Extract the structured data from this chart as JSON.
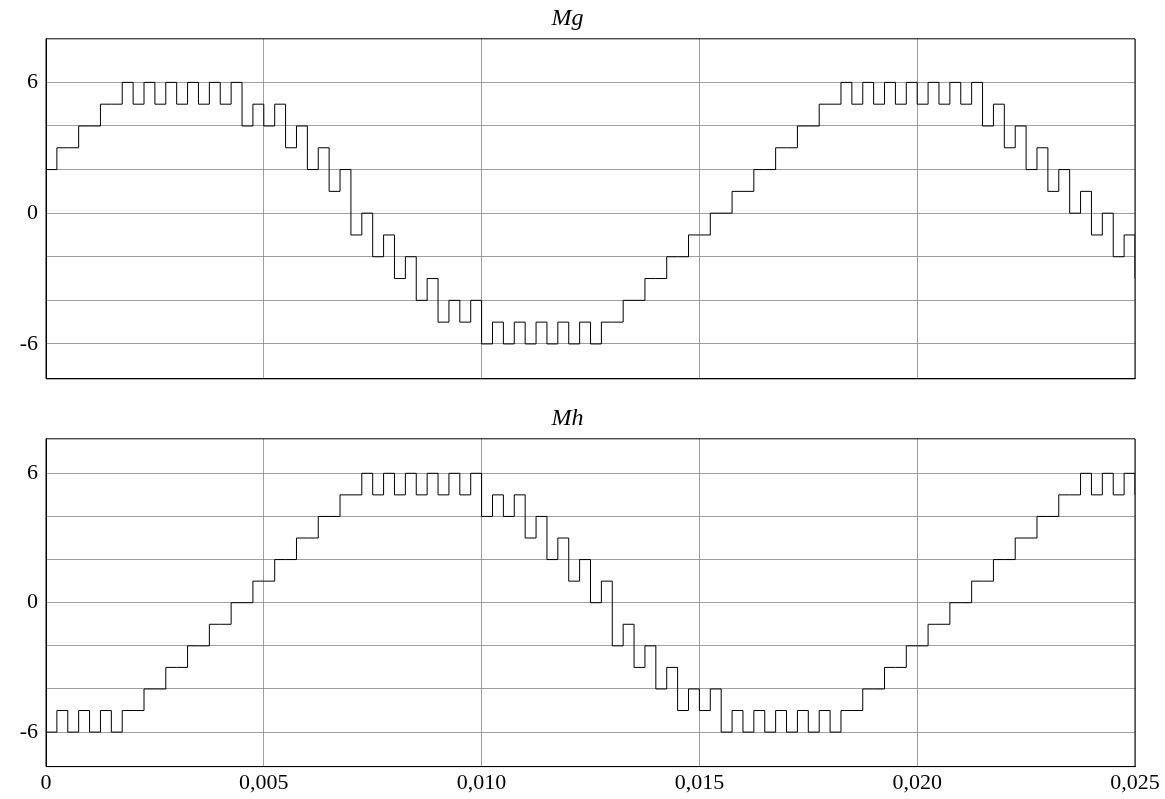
{
  "chart_data": [
    {
      "type": "step",
      "title": "Mg",
      "tick_labels": "y",
      "grid": true,
      "x": [
        0,
        0.00025,
        0.0005,
        0.00075,
        0.001,
        0.00125,
        0.0015,
        0.00175,
        0.002,
        0.00225,
        0.0025,
        0.00275,
        0.003,
        0.00325,
        0.0035,
        0.00375,
        0.004,
        0.00425,
        0.0045,
        0.00475,
        0.005,
        0.00525,
        0.0055,
        0.00575,
        0.006,
        0.00625,
        0.0065,
        0.00675,
        0.007,
        0.00725,
        0.0075,
        0.00775,
        0.008,
        0.00825,
        0.0085,
        0.00875,
        0.009,
        0.00925,
        0.0095,
        0.00975,
        0.01,
        0.01025,
        0.0105,
        0.01075,
        0.011,
        0.01125,
        0.0115,
        0.01175,
        0.012,
        0.01225,
        0.0125,
        0.01275,
        0.013,
        0.01325,
        0.0135,
        0.01375,
        0.014,
        0.01425,
        0.0145,
        0.01475,
        0.015,
        0.01525,
        0.0155,
        0.01575,
        0.016,
        0.01625,
        0.0165,
        0.01675,
        0.017,
        0.01725,
        0.0175,
        0.01775,
        0.018,
        0.01825,
        0.0185,
        0.01875,
        0.019,
        0.01925,
        0.0195,
        0.01975,
        0.02,
        0.02025,
        0.0205,
        0.02075,
        0.021,
        0.02125,
        0.0215,
        0.02175,
        0.022,
        0.02225,
        0.0225,
        0.02275,
        0.023,
        0.02325,
        0.0235,
        0.02375,
        0.024,
        0.02425,
        0.0245,
        0.02475,
        0.025
      ],
      "series": [
        {
          "color": "#000000",
          "values": [
            2,
            3,
            3,
            4,
            4,
            5,
            5,
            6,
            5,
            6,
            5,
            6,
            5,
            6,
            5,
            6,
            5,
            6,
            4,
            5,
            4,
            5,
            3,
            4,
            2,
            3,
            1,
            2,
            -1,
            0,
            -2,
            -1,
            -3,
            -2,
            -4,
            -3,
            -5,
            -4,
            -5,
            -4,
            -6,
            -5,
            -6,
            -5,
            -6,
            -5,
            -6,
            -5,
            -6,
            -5,
            -6,
            -5,
            -5,
            -4,
            -4,
            -3,
            -3,
            -2,
            -2,
            -1,
            -1,
            0,
            0,
            1,
            1,
            2,
            2,
            3,
            3,
            4,
            4,
            5,
            5,
            6,
            5,
            6,
            5,
            6,
            5,
            6,
            5,
            6,
            5,
            6,
            5,
            6,
            4,
            5,
            3,
            4,
            2,
            3,
            1,
            2,
            0,
            1,
            -1,
            0,
            -2,
            -1,
            -3
          ]
        }
      ],
      "xlim": [
        0,
        0.025
      ],
      "xticks": [
        0,
        0.005,
        0.01,
        0.015,
        0.02,
        0.025
      ],
      "ylim": [
        -7.6,
        8
      ],
      "yticks": [
        -6,
        {
          "value": -4,
          "label": null
        },
        {
          "value": -2,
          "label": null
        },
        0,
        {
          "value": 2,
          "label": null
        },
        {
          "value": 4,
          "label": null
        },
        6
      ]
    },
    {
      "type": "step",
      "title": "Mh",
      "grid": true,
      "x": [
        0,
        0.00025,
        0.0005,
        0.00075,
        0.001,
        0.00125,
        0.0015,
        0.00175,
        0.002,
        0.00225,
        0.0025,
        0.00275,
        0.003,
        0.00325,
        0.0035,
        0.00375,
        0.004,
        0.00425,
        0.0045,
        0.00475,
        0.005,
        0.00525,
        0.0055,
        0.00575,
        0.006,
        0.00625,
        0.0065,
        0.00675,
        0.007,
        0.00725,
        0.0075,
        0.00775,
        0.008,
        0.00825,
        0.0085,
        0.00875,
        0.009,
        0.00925,
        0.0095,
        0.00975,
        0.01,
        0.01025,
        0.0105,
        0.01075,
        0.011,
        0.01125,
        0.0115,
        0.01175,
        0.012,
        0.01225,
        0.0125,
        0.01275,
        0.013,
        0.01325,
        0.0135,
        0.01375,
        0.014,
        0.01425,
        0.0145,
        0.01475,
        0.015,
        0.01525,
        0.0155,
        0.01575,
        0.016,
        0.01625,
        0.0165,
        0.01675,
        0.017,
        0.01725,
        0.0175,
        0.01775,
        0.018,
        0.01825,
        0.0185,
        0.01875,
        0.019,
        0.01925,
        0.0195,
        0.01975,
        0.02,
        0.02025,
        0.0205,
        0.02075,
        0.021,
        0.02125,
        0.0215,
        0.02175,
        0.022,
        0.02225,
        0.0225,
        0.02275,
        0.023,
        0.02325,
        0.0235,
        0.02375,
        0.024,
        0.02425,
        0.0245,
        0.02475,
        0.025
      ],
      "series": [
        {
          "color": "#000000",
          "values": [
            -6,
            -5,
            -6,
            -5,
            -6,
            -5,
            -6,
            -5,
            -5,
            -4,
            -4,
            -3,
            -3,
            -2,
            -2,
            -1,
            -1,
            0,
            0,
            1,
            1,
            2,
            2,
            3,
            3,
            4,
            4,
            5,
            5,
            6,
            5,
            6,
            5,
            6,
            5,
            6,
            5,
            6,
            5,
            6,
            4,
            5,
            4,
            5,
            3,
            4,
            2,
            3,
            1,
            2,
            0,
            1,
            -2,
            -1,
            -3,
            -2,
            -4,
            -3,
            -5,
            -4,
            -5,
            -4,
            -6,
            -5,
            -6,
            -5,
            -6,
            -5,
            -6,
            -5,
            -6,
            -5,
            -6,
            -5,
            -5,
            -4,
            -4,
            -3,
            -3,
            -2,
            -2,
            -1,
            -1,
            0,
            0,
            1,
            1,
            2,
            2,
            3,
            3,
            4,
            4,
            5,
            5,
            6,
            5,
            6,
            5,
            6,
            5
          ]
        }
      ],
      "xlim": [
        0,
        0.025
      ],
      "xticks": [
        {
          "value": 0,
          "label": "0"
        },
        {
          "value": 0.005,
          "label": "0,005"
        },
        {
          "value": 0.01,
          "label": "0,010"
        },
        {
          "value": 0.015,
          "label": "0,015"
        },
        {
          "value": 0.02,
          "label": "0,020"
        },
        {
          "value": 0.025,
          "label": "0,025"
        }
      ],
      "ylim": [
        -7.6,
        7.6
      ],
      "yticks": [
        -6,
        {
          "value": -4,
          "label": null
        },
        {
          "value": -2,
          "label": null
        },
        0,
        {
          "value": 2,
          "label": null
        },
        {
          "value": 4,
          "label": null
        },
        6
      ]
    }
  ]
}
